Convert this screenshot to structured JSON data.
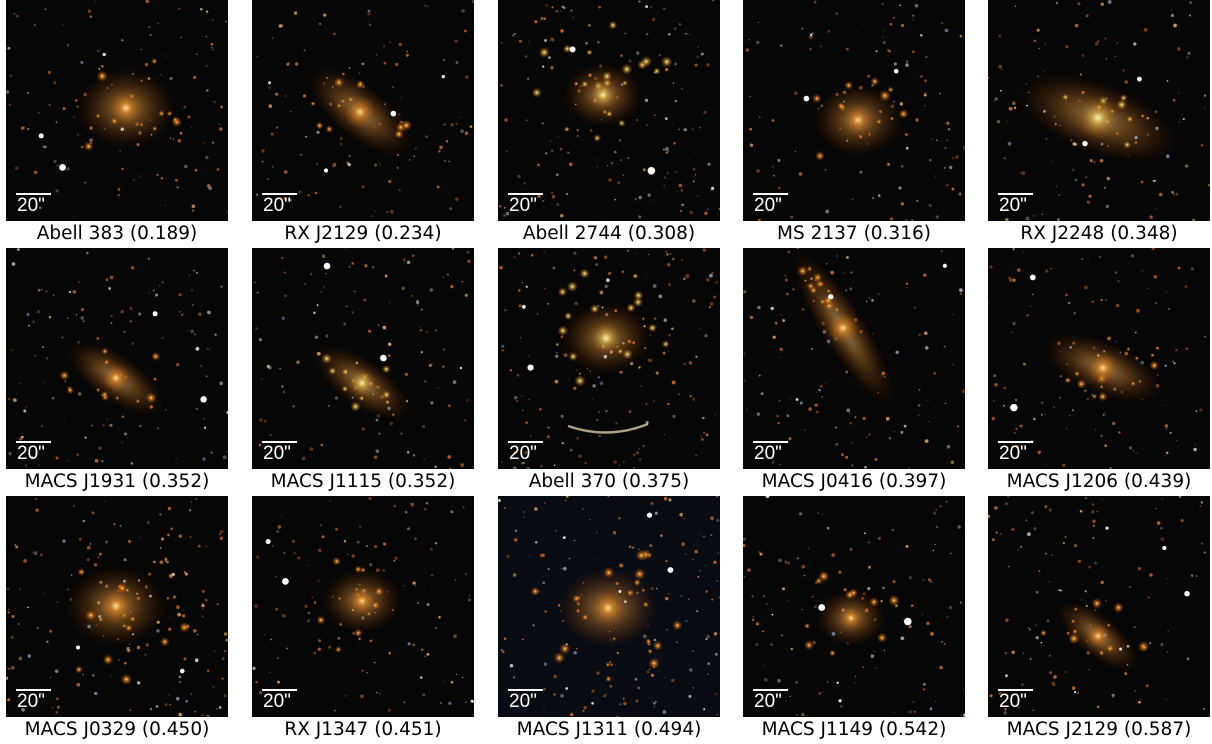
{
  "scale_bar_label": "20\"",
  "panels": [
    {
      "name": "Abell 383",
      "redshift": "0.189",
      "caption": "Abell 383 (0.189)"
    },
    {
      "name": "RX J2129",
      "redshift": "0.234",
      "caption": "RX J2129 (0.234)"
    },
    {
      "name": "Abell 2744",
      "redshift": "0.308",
      "caption": "Abell 2744 (0.308)"
    },
    {
      "name": "MS 2137",
      "redshift": "0.316",
      "caption": "MS 2137 (0.316)"
    },
    {
      "name": "RX J2248",
      "redshift": "0.348",
      "caption": "RX J2248 (0.348)"
    },
    {
      "name": "MACS J1931",
      "redshift": "0.352",
      "caption": "MACS J1931 (0.352)"
    },
    {
      "name": "MACS J1115",
      "redshift": "0.352",
      "caption": "MACS J1115 (0.352)"
    },
    {
      "name": "Abell 370",
      "redshift": "0.375",
      "caption": "Abell 370 (0.375)"
    },
    {
      "name": "MACS J0416",
      "redshift": "0.397",
      "caption": "MACS J0416 (0.397)"
    },
    {
      "name": "MACS J1206",
      "redshift": "0.439",
      "caption": "MACS J1206 (0.439)"
    },
    {
      "name": "MACS J0329",
      "redshift": "0.450",
      "caption": "MACS J0329 (0.450)"
    },
    {
      "name": "RX J1347",
      "redshift": "0.451",
      "caption": "RX J1347 (0.451)"
    },
    {
      "name": "MACS J1311",
      "redshift": "0.494",
      "caption": "MACS J1311 (0.494)"
    },
    {
      "name": "MACS J1149",
      "redshift": "0.542",
      "caption": "MACS J1149 (0.542)"
    },
    {
      "name": "MACS J2129",
      "redshift": "0.587",
      "caption": "MACS J2129 (0.587)"
    }
  ]
}
